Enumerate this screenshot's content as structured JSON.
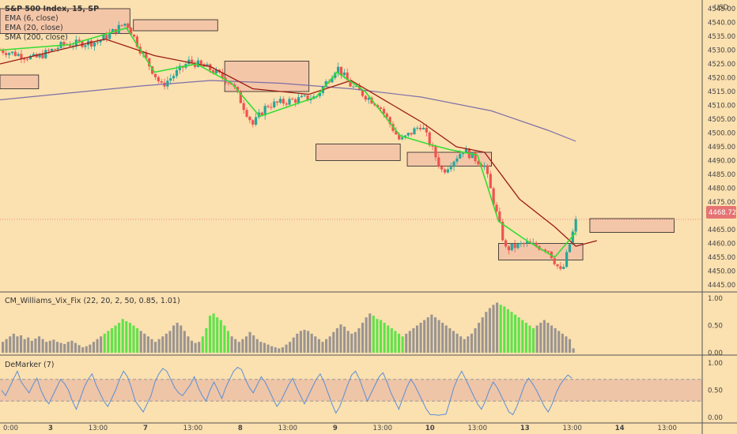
{
  "chart_data": [
    {
      "type": "candlestick",
      "panel": "price",
      "title": "S&P 500 Index, 15, SP",
      "currency": "USD",
      "last_price_label": "4468.72",
      "ylim": [
        4443,
        4547
      ],
      "y_ticks": [
        "4545.00",
        "4540.00",
        "4535.00",
        "4530.00",
        "4525.00",
        "4520.00",
        "4515.00",
        "4510.00",
        "4505.00",
        "4500.00",
        "4495.00",
        "4490.00",
        "4485.00",
        "4480.00",
        "4475.00",
        "4470.00",
        "4465.00",
        "4460.00",
        "4455.00",
        "4450.00",
        "4445.00"
      ],
      "x_ticks": [
        "0:00",
        "3",
        "13:00",
        "7",
        "13:00",
        "8",
        "13:00",
        "9",
        "13:00",
        "10",
        "13:00",
        "13",
        "13:00",
        "14",
        "13:00"
      ],
      "legend": [
        "EMA (6, close)",
        "EMA (20, close)",
        "SMA (200, close)"
      ],
      "close_points": [
        {
          "x": 0.0,
          "close": 4530
        },
        {
          "x": 0.05,
          "close": 4527
        },
        {
          "x": 0.09,
          "close": 4532
        },
        {
          "x": 0.14,
          "close": 4533
        },
        {
          "x": 0.18,
          "close": 4540
        },
        {
          "x": 0.2,
          "close": 4530
        },
        {
          "x": 0.23,
          "close": 4517
        },
        {
          "x": 0.27,
          "close": 4526
        },
        {
          "x": 0.3,
          "close": 4523
        },
        {
          "x": 0.33,
          "close": 4518
        },
        {
          "x": 0.36,
          "close": 4503
        },
        {
          "x": 0.38,
          "close": 4510
        },
        {
          "x": 0.42,
          "close": 4512
        },
        {
          "x": 0.45,
          "close": 4513
        },
        {
          "x": 0.48,
          "close": 4524
        },
        {
          "x": 0.5,
          "close": 4517
        },
        {
          "x": 0.54,
          "close": 4510
        },
        {
          "x": 0.57,
          "close": 4497
        },
        {
          "x": 0.6,
          "close": 4503
        },
        {
          "x": 0.63,
          "close": 4486
        },
        {
          "x": 0.66,
          "close": 4494
        },
        {
          "x": 0.69,
          "close": 4488
        },
        {
          "x": 0.72,
          "close": 4458
        },
        {
          "x": 0.75,
          "close": 4460
        },
        {
          "x": 0.78,
          "close": 4458
        },
        {
          "x": 0.8,
          "close": 4449
        },
        {
          "x": 0.82,
          "close": 4468
        }
      ],
      "ema6": [
        {
          "x": 0.0,
          "y": 4530
        },
        {
          "x": 0.1,
          "y": 4532
        },
        {
          "x": 0.18,
          "y": 4538
        },
        {
          "x": 0.22,
          "y": 4522
        },
        {
          "x": 0.28,
          "y": 4525
        },
        {
          "x": 0.33,
          "y": 4518
        },
        {
          "x": 0.37,
          "y": 4506
        },
        {
          "x": 0.45,
          "y": 4513
        },
        {
          "x": 0.48,
          "y": 4522
        },
        {
          "x": 0.52,
          "y": 4515
        },
        {
          "x": 0.57,
          "y": 4499
        },
        {
          "x": 0.61,
          "y": 4496
        },
        {
          "x": 0.64,
          "y": 4494
        },
        {
          "x": 0.68,
          "y": 4492
        },
        {
          "x": 0.71,
          "y": 4468
        },
        {
          "x": 0.75,
          "y": 4461
        },
        {
          "x": 0.79,
          "y": 4455
        },
        {
          "x": 0.82,
          "y": 4464
        }
      ],
      "ema20": [
        {
          "x": 0.0,
          "y": 4525
        },
        {
          "x": 0.15,
          "y": 4534
        },
        {
          "x": 0.22,
          "y": 4528
        },
        {
          "x": 0.3,
          "y": 4524
        },
        {
          "x": 0.36,
          "y": 4516
        },
        {
          "x": 0.44,
          "y": 4514
        },
        {
          "x": 0.5,
          "y": 4519
        },
        {
          "x": 0.56,
          "y": 4510
        },
        {
          "x": 0.6,
          "y": 4504
        },
        {
          "x": 0.65,
          "y": 4495
        },
        {
          "x": 0.69,
          "y": 4493
        },
        {
          "x": 0.74,
          "y": 4476
        },
        {
          "x": 0.79,
          "y": 4466
        },
        {
          "x": 0.82,
          "y": 4459
        },
        {
          "x": 0.85,
          "y": 4461
        }
      ],
      "sma200": [
        {
          "x": 0.0,
          "y": 4512
        },
        {
          "x": 0.2,
          "y": 4517
        },
        {
          "x": 0.3,
          "y": 4519
        },
        {
          "x": 0.4,
          "y": 4518
        },
        {
          "x": 0.5,
          "y": 4516
        },
        {
          "x": 0.6,
          "y": 4513
        },
        {
          "x": 0.7,
          "y": 4508
        },
        {
          "x": 0.78,
          "y": 4501
        },
        {
          "x": 0.82,
          "y": 4497
        }
      ],
      "zones": [
        {
          "x0": 0.0,
          "x1": 0.055,
          "y0": 4516,
          "y1": 4521
        },
        {
          "x0": 0.0,
          "x1": 0.185,
          "y0": 4536,
          "y1": 4545
        },
        {
          "x0": 0.19,
          "x1": 0.31,
          "y0": 4537,
          "y1": 4541
        },
        {
          "x0": 0.32,
          "x1": 0.44,
          "y0": 4515,
          "y1": 4526
        },
        {
          "x0": 0.45,
          "x1": 0.57,
          "y0": 4490,
          "y1": 4496
        },
        {
          "x0": 0.58,
          "x1": 0.7,
          "y0": 4488,
          "y1": 4493
        },
        {
          "x0": 0.71,
          "x1": 0.83,
          "y0": 4454,
          "y1": 4460
        },
        {
          "x0": 0.84,
          "x1": 0.96,
          "y0": 4464,
          "y1": 4469
        }
      ]
    },
    {
      "type": "bar",
      "panel": "indicator",
      "title": "CM_Williams_Vix_Fix (22, 20, 2, 50, 0.85, 1.01)",
      "ylim": [
        0,
        1
      ],
      "y_ticks": [
        "1.00",
        "0.50",
        "0.00"
      ],
      "values": [
        0.2,
        0.25,
        0.3,
        0.35,
        0.3,
        0.32,
        0.25,
        0.28,
        0.22,
        0.26,
        0.3,
        0.25,
        0.2,
        0.22,
        0.24,
        0.2,
        0.18,
        0.16,
        0.2,
        0.22,
        0.18,
        0.14,
        0.1,
        0.12,
        0.15,
        0.2,
        0.25,
        0.3,
        0.35,
        0.4,
        0.45,
        0.5,
        0.55,
        0.62,
        0.58,
        0.55,
        0.5,
        0.45,
        0.4,
        0.35,
        0.3,
        0.25,
        0.2,
        0.25,
        0.3,
        0.35,
        0.4,
        0.5,
        0.55,
        0.5,
        0.4,
        0.3,
        0.22,
        0.18,
        0.2,
        0.3,
        0.45,
        0.68,
        0.72,
        0.65,
        0.6,
        0.5,
        0.4,
        0.3,
        0.25,
        0.2,
        0.25,
        0.3,
        0.38,
        0.32,
        0.25,
        0.2,
        0.18,
        0.15,
        0.12,
        0.1,
        0.08,
        0.1,
        0.15,
        0.2,
        0.28,
        0.35,
        0.4,
        0.42,
        0.4,
        0.35,
        0.3,
        0.25,
        0.2,
        0.25,
        0.3,
        0.38,
        0.45,
        0.52,
        0.48,
        0.4,
        0.35,
        0.38,
        0.45,
        0.55,
        0.65,
        0.72,
        0.68,
        0.62,
        0.6,
        0.55,
        0.5,
        0.45,
        0.4,
        0.35,
        0.3,
        0.35,
        0.4,
        0.45,
        0.5,
        0.55,
        0.6,
        0.65,
        0.7,
        0.65,
        0.6,
        0.55,
        0.5,
        0.45,
        0.4,
        0.35,
        0.3,
        0.25,
        0.3,
        0.35,
        0.45,
        0.55,
        0.65,
        0.75,
        0.82,
        0.88,
        0.92,
        0.88,
        0.85,
        0.8,
        0.75,
        0.7,
        0.65,
        0.6,
        0.55,
        0.5,
        0.45,
        0.5,
        0.55,
        0.6,
        0.55,
        0.5,
        0.45,
        0.4,
        0.35,
        0.3,
        0.25,
        0.08
      ],
      "highlight_ranges": [
        [
          28,
          37
        ],
        [
          55,
          62
        ],
        [
          102,
          110
        ],
        [
          137,
          146
        ]
      ]
    },
    {
      "type": "line",
      "panel": "indicator",
      "title": "DeMarker (7)",
      "ylim": [
        0,
        1
      ],
      "y_ticks": [
        "1.00",
        "0.50",
        "0.00"
      ],
      "band": [
        0.3,
        0.7
      ],
      "values": [
        0.5,
        0.4,
        0.55,
        0.7,
        0.85,
        0.65,
        0.55,
        0.45,
        0.6,
        0.72,
        0.5,
        0.35,
        0.25,
        0.4,
        0.55,
        0.7,
        0.62,
        0.5,
        0.3,
        0.15,
        0.35,
        0.55,
        0.7,
        0.8,
        0.6,
        0.45,
        0.3,
        0.2,
        0.35,
        0.5,
        0.7,
        0.85,
        0.75,
        0.55,
        0.3,
        0.2,
        0.1,
        0.25,
        0.4,
        0.65,
        0.8,
        0.9,
        0.85,
        0.7,
        0.55,
        0.45,
        0.4,
        0.5,
        0.6,
        0.75,
        0.55,
        0.4,
        0.3,
        0.5,
        0.65,
        0.5,
        0.35,
        0.55,
        0.7,
        0.85,
        0.92,
        0.88,
        0.7,
        0.55,
        0.45,
        0.6,
        0.75,
        0.65,
        0.5,
        0.35,
        0.2,
        0.3,
        0.45,
        0.6,
        0.72,
        0.55,
        0.4,
        0.25,
        0.4,
        0.55,
        0.7,
        0.8,
        0.65,
        0.45,
        0.25,
        0.08,
        0.2,
        0.4,
        0.6,
        0.78,
        0.85,
        0.7,
        0.5,
        0.3,
        0.45,
        0.6,
        0.75,
        0.82,
        0.65,
        0.45,
        0.3,
        0.15,
        0.35,
        0.55,
        0.7,
        0.6,
        0.45,
        0.3,
        0.15,
        0.05,
        0.05,
        0.04,
        0.05,
        0.06,
        0.3,
        0.55,
        0.72,
        0.85,
        0.7,
        0.55,
        0.4,
        0.25,
        0.15,
        0.3,
        0.5,
        0.65,
        0.55,
        0.4,
        0.25,
        0.1,
        0.05,
        0.2,
        0.4,
        0.6,
        0.72,
        0.62,
        0.5,
        0.35,
        0.2,
        0.1,
        0.25,
        0.45,
        0.6,
        0.7,
        0.78,
        0.72
      ]
    }
  ]
}
